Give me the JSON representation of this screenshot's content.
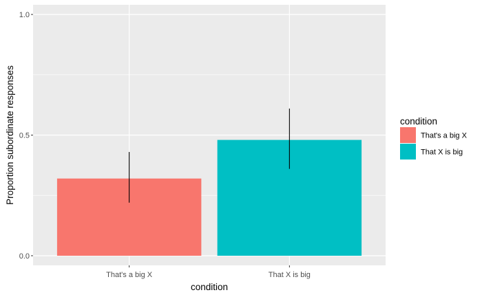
{
  "chart_data": {
    "type": "bar",
    "title": "",
    "xlabel": "condition",
    "ylabel": "Proportion subordinate responses",
    "categories": [
      "That's a big X",
      "That X is big"
    ],
    "values": [
      0.32,
      0.48
    ],
    "error_low": [
      0.22,
      0.36
    ],
    "error_high": [
      0.43,
      0.61
    ],
    "colors": [
      "#F8766D",
      "#00BFC4"
    ],
    "ylim": [
      -0.04,
      1.04
    ],
    "yticks": [
      0.0,
      0.5,
      1.0
    ],
    "ytick_labels": [
      "0.0",
      "0.5",
      "1.0"
    ],
    "grid": true,
    "panel_background": "#EBEBEB",
    "grid_color": "#FFFFFF",
    "legend": {
      "title": "condition",
      "placement": "right",
      "entries": [
        "That's a big X",
        "That X is big"
      ]
    }
  }
}
